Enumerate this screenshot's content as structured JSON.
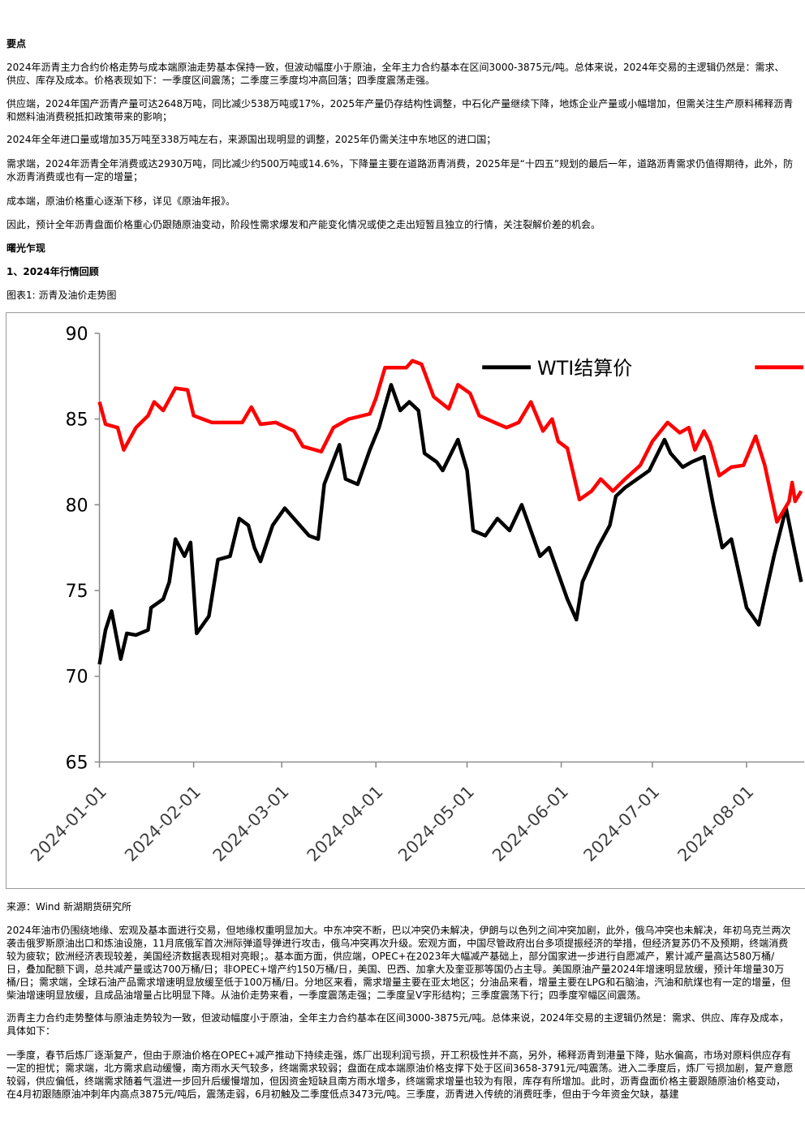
{
  "key_points": {
    "heading": "要点",
    "paragraphs": [
      "2024年沥青主力合约价格走势与成本端原油走势基本保持一致，但波动幅度小于原油，全年主力合约基本在区间3000-3875元/吨。总体来说，2024年交易的主逻辑仍然是：需求、供应、库存及成本。价格表现如下：一季度区间震荡；二季度三季度均冲高回落；四季度震荡走强。",
      "供应端，2024年国产沥青产量可达2648万吨，同比减少538万吨或17%，2025年产量仍存结构性调整，中石化产量继续下降，地炼企业产量或小幅增加，但需关注生产原料稀释沥青和燃料油消费税抵扣政策带来的影响；",
      "2024年全年进口量或增加35万吨至338万吨左右，来源国出现明显的调整，2025年仍需关注中东地区的进口国；",
      "需求端，2024年沥青全年消费或达2930万吨，同比减少约500万吨或14.6%，下降量主要在道路沥青消费，2025年是“十四五”规划的最后一年，道路沥青需求仍值得期待，此外，防水沥青消费或也有一定的增量；",
      "成本端，原油价格重心逐渐下移，详见《原油年报》。",
      "因此，预计全年沥青盘面价格重心仍跟随原油变动，阶段性需求爆发和产能变化情况或使之走出短暂且独立的行情，关注裂解价差的机会。"
    ]
  },
  "section": {
    "heading": "曙光乍现",
    "subheading": "1、2024年行情回顾",
    "figure_caption": "图表1: 沥青及油价走势图",
    "source": "来源：Wind 新湖期货研究所",
    "paragraphs": [
      "2024年油市仍围绕地缘、宏观及基本面进行交易，但地缘权重明显加大。中东冲突不断，巴以冲突仍未解决，伊朗与以色列之间冲突加剧，此外，俄乌冲突也未解决，年初乌克兰两次袭击俄罗斯原油出口和炼油设施，11月底俄军首次洲际弹道导弹进行攻击，俄乌冲突再次升级。宏观方面，中国尽管政府出台多项提振经济的举措，但经济复苏仍不及预期，终端消费较为疲软；欧洲经济表现较差，美国经济数据表现相对亮眼；。基本面方面，供应端，OPEC+在2023年大幅减产基础上，部分国家进一步进行自愿减产，累计减产量高达580万桶/日，叠加配额下调，总共减产量或达700万桶/日；非OPEC+增产约150万桶/日，美国、巴西、加拿大及奎亚那等国仍占主导。美国原油产量2024年增速明显放缓，预计年增量30万桶/日；需求端，全球石油产品需求增速明显放缓至低于100万桶/日。分地区来看，需求增量主要在亚太地区；分油品来看，增量主要在LPG和石脑油，汽油和航煤也有一定的增量，但柴油增速明显放缓，且成品油增量占比明显下降。从油价走势来看，一季度震荡走强；二季度呈V字形结构；三季度震荡下行；四季度窄幅区间震荡。",
      "沥青主力合约走势整体与原油走势较为一致，但波动幅度小于原油，全年主力合约基本在区间3000-3875元/吨。总体来说，2024年交易的主逻辑仍然是：需求、供应、库存及成本，具体如下：",
      "一季度，春节后炼厂逐渐复产，但由于原油价格在OPEC+减产推动下持续走强，炼厂出现利润亏损，开工积极性并不高，另外，稀释沥青到港量下降，贴水偏高，市场对原料供应存有一定的担忧；需求端，北方需求启动缓慢，南方雨水天气较多，终端需求较弱；盘面在成本端原油价格支撑下处于区间3658-3791元/吨震荡。进入二季度后，炼厂亏损加剧，复产意愿较弱，供应偏低，终端需求随着气温进一步回升后缓慢增加，但因资金短缺且南方雨水增多，终端需求增量也较为有限，库存有所增加。此时，沥青盘面价格主要跟随原油价格变动，在4月初跟随原油冲刺年内高点3875元/吨后，震荡走弱，6月初触及二季度低点3473元/吨。三季度，沥青进入传统的消费旺季，但由于今年资金欠缺，基建"
    ]
  },
  "chart_data": {
    "type": "line",
    "xlim": [
      "2024-01-01",
      "2024-08-20"
    ],
    "xticks": [
      "2024-01-01",
      "2024-02-01",
      "2024-03-01",
      "2024-04-01",
      "2024-05-01",
      "2024-06-01",
      "2024-07-01",
      "2024-08-01"
    ],
    "ylim": [
      65,
      90
    ],
    "yticks": [
      65,
      70,
      75,
      80,
      85,
      90
    ],
    "series": [
      {
        "name": "WTI结算价",
        "color": "#000000",
        "x": [
          "2024-01-01",
          "2024-01-03",
          "2024-01-05",
          "2024-01-08",
          "2024-01-10",
          "2024-01-13",
          "2024-01-17",
          "2024-01-18",
          "2024-01-22",
          "2024-01-24",
          "2024-01-26",
          "2024-01-29",
          "2024-01-31",
          "2024-02-02",
          "2024-02-06",
          "2024-02-09",
          "2024-02-13",
          "2024-02-16",
          "2024-02-19",
          "2024-02-21",
          "2024-02-23",
          "2024-02-27",
          "2024-03-02",
          "2024-03-06",
          "2024-03-10",
          "2024-03-13",
          "2024-03-15",
          "2024-03-20",
          "2024-03-22",
          "2024-03-26",
          "2024-03-30",
          "2024-04-02",
          "2024-04-06",
          "2024-04-09",
          "2024-04-12",
          "2024-04-15",
          "2024-04-17",
          "2024-04-21",
          "2024-04-23",
          "2024-04-28",
          "2024-05-01",
          "2024-05-03",
          "2024-05-07",
          "2024-05-11",
          "2024-05-15",
          "2024-05-19",
          "2024-05-25",
          "2024-05-28",
          "2024-06-03",
          "2024-06-06",
          "2024-06-08",
          "2024-06-13",
          "2024-06-17",
          "2024-06-19",
          "2024-06-22",
          "2024-06-26",
          "2024-06-30",
          "2024-07-05",
          "2024-07-07",
          "2024-07-11",
          "2024-07-14",
          "2024-07-18",
          "2024-07-21",
          "2024-07-24",
          "2024-07-27",
          "2024-08-01",
          "2024-08-05",
          "2024-08-10",
          "2024-08-14",
          "2024-08-17",
          "2024-08-19"
        ],
        "values": [
          70.7,
          72.7,
          73.8,
          71,
          72.5,
          72.4,
          72.7,
          74,
          74.5,
          75.5,
          78,
          77,
          77.8,
          72.5,
          73.5,
          76.8,
          77,
          79.2,
          78.8,
          77.5,
          76.7,
          78.8,
          79.8,
          79,
          78.2,
          78,
          81.2,
          83.5,
          81.5,
          81.2,
          83.2,
          84.5,
          87,
          85.5,
          86,
          85.5,
          83,
          82.5,
          82,
          83.8,
          82,
          78.5,
          78.2,
          79.2,
          78.5,
          80,
          77,
          77.5,
          74.5,
          73.3,
          75.5,
          77.5,
          78.8,
          80.5,
          81,
          81.5,
          82,
          83.8,
          83,
          82.2,
          82.5,
          82.8,
          80,
          77.5,
          78,
          74,
          73,
          77,
          79.8,
          77.2,
          75.5
        ]
      },
      {
        "color": "#ff0000",
        "x": [
          "2024-01-01",
          "2024-01-03",
          "2024-01-07",
          "2024-01-09",
          "2024-01-13",
          "2024-01-17",
          "2024-01-19",
          "2024-01-22",
          "2024-01-26",
          "2024-01-30",
          "2024-02-01",
          "2024-02-07",
          "2024-02-17",
          "2024-02-20",
          "2024-02-23",
          "2024-02-28",
          "2024-03-05",
          "2024-03-08",
          "2024-03-14",
          "2024-03-18",
          "2024-03-23",
          "2024-03-30",
          "2024-04-01",
          "2024-04-04",
          "2024-04-11",
          "2024-04-13",
          "2024-04-16",
          "2024-04-20",
          "2024-04-25",
          "2024-04-28",
          "2024-05-02",
          "2024-05-05",
          "2024-05-10",
          "2024-05-14",
          "2024-05-18",
          "2024-05-22",
          "2024-05-26",
          "2024-05-29",
          "2024-05-31",
          "2024-06-03",
          "2024-06-07",
          "2024-06-11",
          "2024-06-14",
          "2024-06-18",
          "2024-06-22",
          "2024-06-27",
          "2024-07-01",
          "2024-07-06",
          "2024-07-10",
          "2024-07-13",
          "2024-07-15",
          "2024-07-18",
          "2024-07-20",
          "2024-07-23",
          "2024-07-27",
          "2024-07-31",
          "2024-08-04",
          "2024-08-07",
          "2024-08-11",
          "2024-08-15",
          "2024-08-16",
          "2024-08-17",
          "2024-08-19"
        ],
        "values": [
          86,
          84.7,
          84.5,
          83.2,
          84.5,
          85.2,
          86,
          85.5,
          86.8,
          86.7,
          85.2,
          84.8,
          84.8,
          85.7,
          84.7,
          84.8,
          84.3,
          83.4,
          83.1,
          84.5,
          85,
          85.3,
          86.2,
          88,
          88,
          88.4,
          88.2,
          86.3,
          85.6,
          87,
          86.5,
          85.2,
          84.8,
          84.5,
          84.8,
          86,
          84.3,
          85,
          83.7,
          83.3,
          80.3,
          80.8,
          81.5,
          80.8,
          81.5,
          82.3,
          83.7,
          84.8,
          84.2,
          84.5,
          83.2,
          84.3,
          83.6,
          81.7,
          82.2,
          82.3,
          84,
          82.3,
          79,
          80.2,
          81.3,
          80.2,
          80.8
        ]
      }
    ]
  }
}
